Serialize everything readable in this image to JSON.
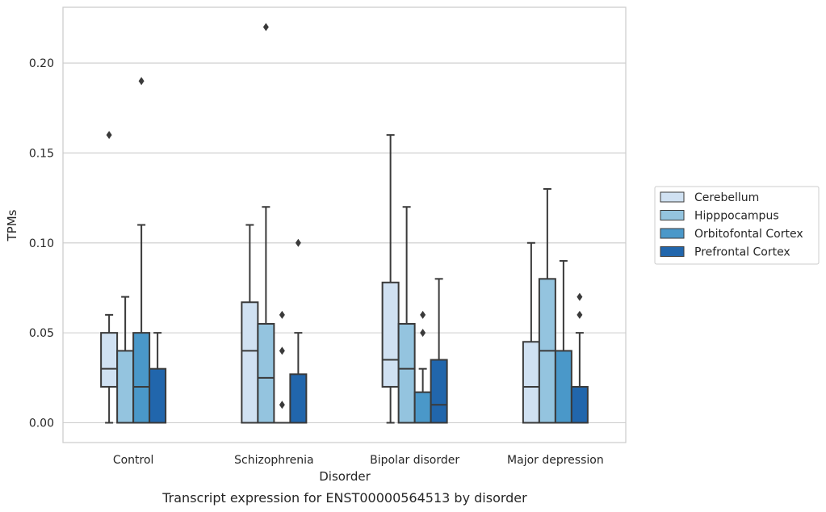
{
  "caption": "Transcript expression for ENST00000564513 by disorder",
  "chart_data": {
    "type": "boxplot",
    "xlabel": "Disorder",
    "ylabel": "TPMs",
    "ylim": [
      -0.011,
      0.231
    ],
    "yticks": [
      "0.00",
      "0.05",
      "0.10",
      "0.15",
      "0.20"
    ],
    "grid": "horizontal",
    "legend_position": "right",
    "categories": [
      "Control",
      "Schizophrenia",
      "Bipolar disorder",
      "Major depression"
    ],
    "series": [
      {
        "name": "Cerebellum",
        "color": "#d0e1f2",
        "boxes": [
          {
            "whislo": 0.0,
            "q1": 0.02,
            "med": 0.03,
            "q3": 0.05,
            "whishi": 0.06,
            "fliers": [
              0.16
            ]
          },
          {
            "whislo": 0.0,
            "q1": 0.0,
            "med": 0.04,
            "q3": 0.067,
            "whishi": 0.11,
            "fliers": []
          },
          {
            "whislo": 0.0,
            "q1": 0.02,
            "med": 0.035,
            "q3": 0.078,
            "whishi": 0.16,
            "fliers": []
          },
          {
            "whislo": 0.0,
            "q1": 0.0,
            "med": 0.02,
            "q3": 0.045,
            "whishi": 0.1,
            "fliers": []
          }
        ]
      },
      {
        "name": "Hipppocampus",
        "color": "#94c4df",
        "boxes": [
          {
            "whislo": 0.0,
            "q1": 0.0,
            "med": 0.0,
            "q3": 0.04,
            "whishi": 0.07,
            "fliers": []
          },
          {
            "whislo": 0.0,
            "q1": 0.0,
            "med": 0.025,
            "q3": 0.055,
            "whishi": 0.12,
            "fliers": [
              0.22
            ]
          },
          {
            "whislo": 0.0,
            "q1": 0.0,
            "med": 0.03,
            "q3": 0.055,
            "whishi": 0.12,
            "fliers": []
          },
          {
            "whislo": 0.0,
            "q1": 0.0,
            "med": 0.04,
            "q3": 0.08,
            "whishi": 0.13,
            "fliers": []
          }
        ]
      },
      {
        "name": "Orbitofontal Cortex",
        "color": "#4a98c9",
        "boxes": [
          {
            "whislo": 0.0,
            "q1": 0.0,
            "med": 0.02,
            "q3": 0.05,
            "whishi": 0.11,
            "fliers": [
              0.19
            ]
          },
          {
            "whislo": 0.0,
            "q1": 0.0,
            "med": 0.0,
            "q3": 0.0,
            "whishi": 0.0,
            "fliers": [
              0.01,
              0.04,
              0.06
            ]
          },
          {
            "whislo": 0.0,
            "q1": 0.0,
            "med": 0.0,
            "q3": 0.017,
            "whishi": 0.03,
            "fliers": [
              0.05,
              0.06
            ]
          },
          {
            "whislo": 0.0,
            "q1": 0.0,
            "med": 0.0,
            "q3": 0.04,
            "whishi": 0.09,
            "fliers": []
          }
        ]
      },
      {
        "name": "Prefrontal Cortex",
        "color": "#2166ac",
        "boxes": [
          {
            "whislo": 0.0,
            "q1": 0.0,
            "med": 0.0,
            "q3": 0.03,
            "whishi": 0.05,
            "fliers": []
          },
          {
            "whislo": 0.0,
            "q1": 0.0,
            "med": 0.0,
            "q3": 0.027,
            "whishi": 0.05,
            "fliers": [
              0.1
            ]
          },
          {
            "whislo": 0.0,
            "q1": 0.0,
            "med": 0.01,
            "q3": 0.035,
            "whishi": 0.08,
            "fliers": []
          },
          {
            "whislo": 0.0,
            "q1": 0.0,
            "med": 0.0,
            "q3": 0.02,
            "whishi": 0.05,
            "fliers": [
              0.06,
              0.07
            ]
          }
        ]
      }
    ]
  }
}
